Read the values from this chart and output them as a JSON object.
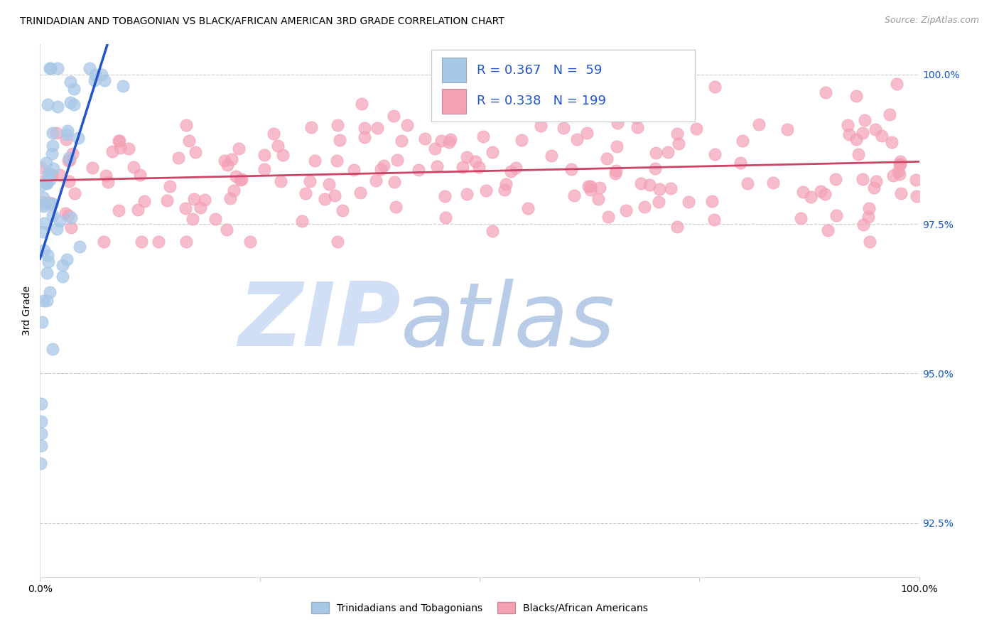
{
  "title": "TRINIDADIAN AND TOBAGONIAN VS BLACK/AFRICAN AMERICAN 3RD GRADE CORRELATION CHART",
  "source_text": "Source: ZipAtlas.com",
  "ylabel": "3rd Grade",
  "blue_color": "#a8c8e8",
  "pink_color": "#f4a0b5",
  "blue_line_color": "#2255cc",
  "pink_line_color": "#cc4466",
  "legend_label_blue": "Trinidadians and Tobagonians",
  "legend_label_pink": "Blacks/African Americans",
  "watermark_zip": "ZIP",
  "watermark_atlas": "atlas",
  "watermark_color_zip": "#c8d8f0",
  "watermark_color_atlas": "#b8c8e0",
  "xlim": [
    0.0,
    1.0
  ],
  "ylim": [
    0.916,
    1.005
  ],
  "ytick_values": [
    0.925,
    0.95,
    0.975,
    1.0
  ],
  "ytick_labels": [
    "92.5%",
    "95.0%",
    "97.5%",
    "100.0%"
  ],
  "R_blue": 0.367,
  "N_blue": 59,
  "R_pink": 0.338,
  "N_pink": 199
}
